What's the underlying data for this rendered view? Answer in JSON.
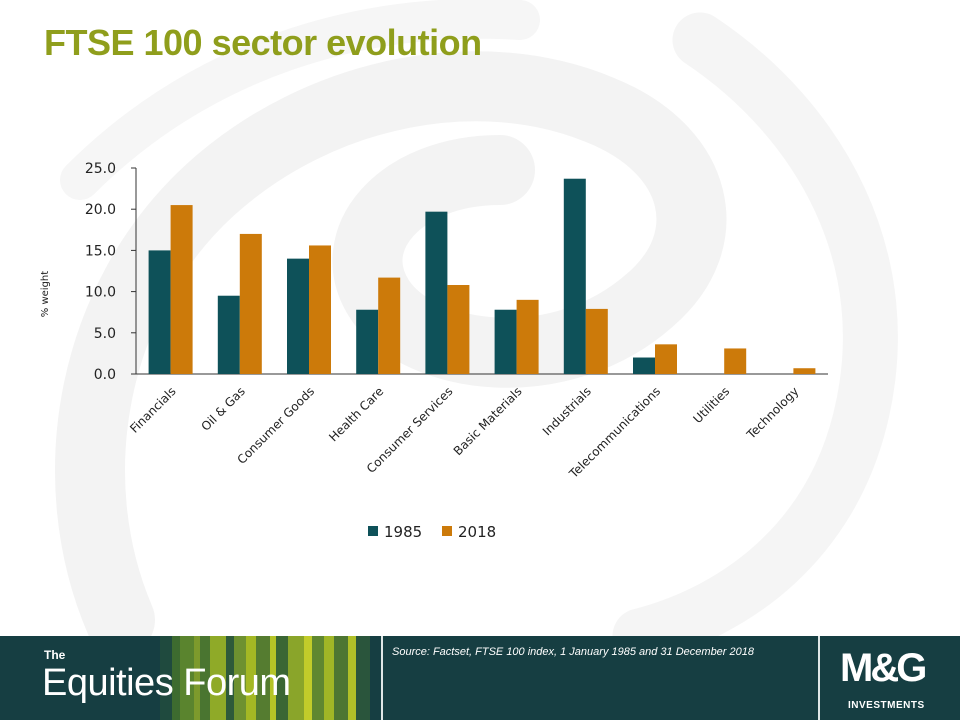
{
  "slide": {
    "title": "FTSE 100 sector evolution"
  },
  "footer": {
    "brand_small": "The",
    "brand_name": "Equities Forum",
    "source": "Source: Factset, FTSE 100 index, 1 January 1985 and  31 December 2018",
    "logo_mark": "M&G",
    "logo_sub": "INVESTMENTS"
  },
  "colors": {
    "title": "#8f9e1c",
    "series_1985": "#0e5159",
    "series_2018": "#cc7a0a",
    "footer_bg": "#163e42"
  },
  "chart_data": {
    "type": "bar",
    "ylabel": "% weight",
    "xlabel": "",
    "ylim": [
      0,
      25
    ],
    "yticks": [
      "0.0",
      "5.0",
      "10.0",
      "15.0",
      "20.0",
      "25.0"
    ],
    "ytick_values": [
      0,
      5,
      10,
      15,
      20,
      25
    ],
    "grid": false,
    "legend_position": "bottom-center",
    "categories": [
      "Financials",
      "Oil & Gas",
      "Consumer Goods",
      "Health Care",
      "Consumer Services",
      "Basic Materials",
      "Industrials",
      "Telecommunications",
      "Utilities",
      "Technology"
    ],
    "series": [
      {
        "name": "1985",
        "values": [
          15.0,
          9.5,
          14.0,
          7.8,
          19.7,
          7.8,
          23.7,
          2.0,
          0.0,
          0.0
        ]
      },
      {
        "name": "2018",
        "values": [
          20.5,
          17.0,
          15.6,
          11.7,
          10.8,
          9.0,
          7.9,
          3.6,
          3.1,
          0.7
        ]
      }
    ]
  }
}
